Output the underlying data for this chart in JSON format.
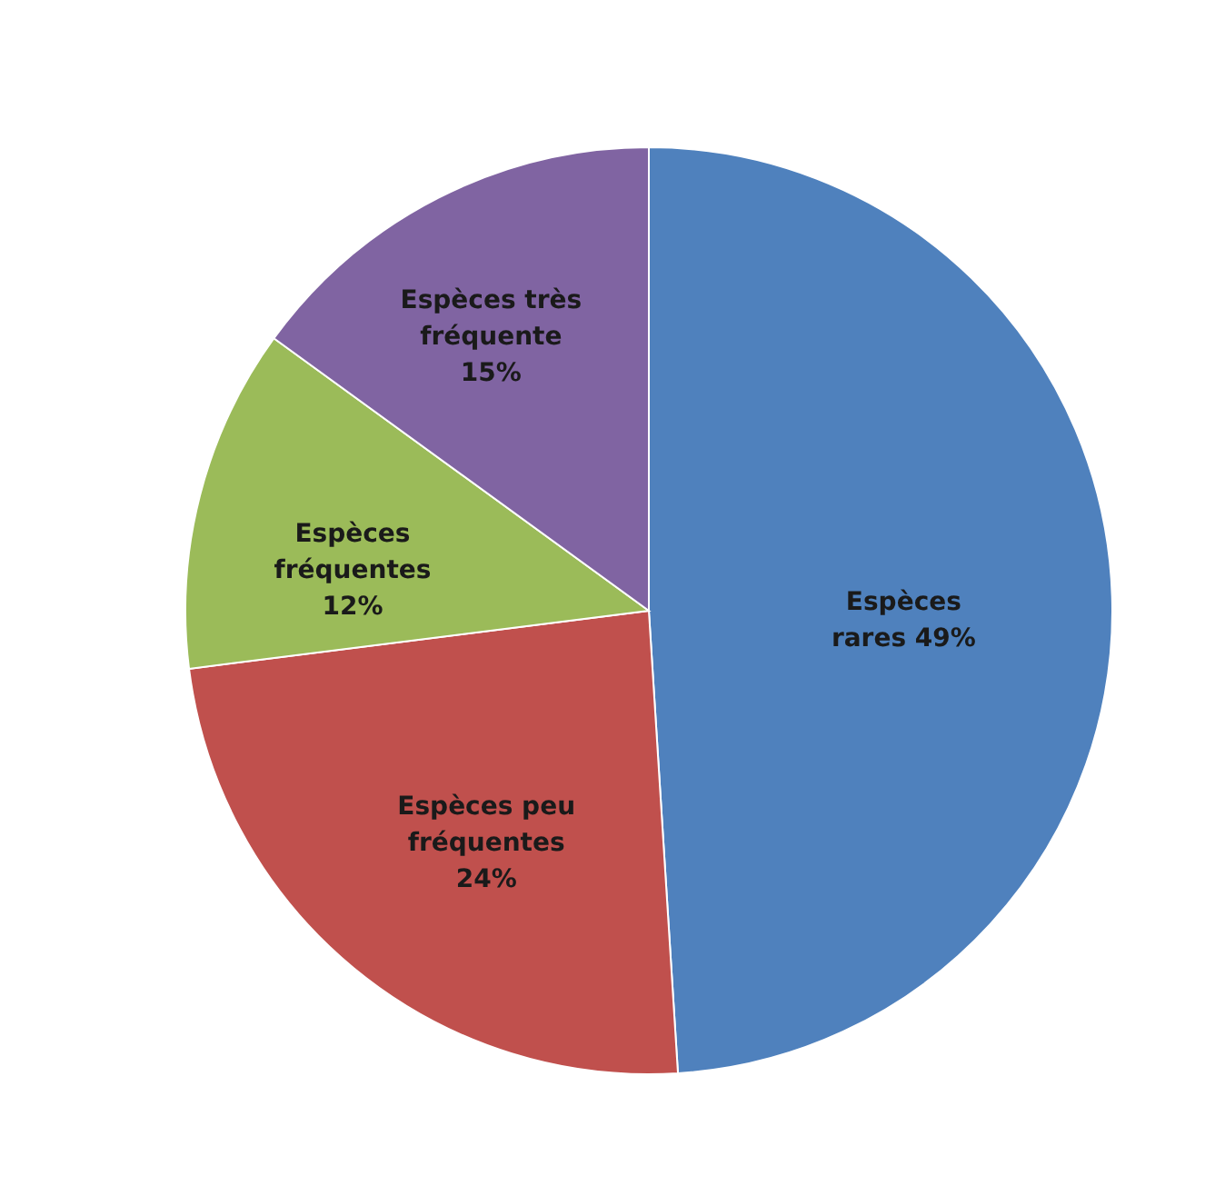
{
  "chart_data": {
    "type": "pie",
    "categories": [
      "Espèces\nrares",
      "Espèces peu\nfréquentes",
      "Espèces\nfréquentes",
      "Espèces très\nfréquente"
    ],
    "values": [
      49,
      24,
      12,
      15
    ],
    "value_labels": [
      "49%",
      "24%",
      "12%",
      "15%"
    ],
    "colors": [
      "#4f81bd",
      "#c0504d",
      "#9bbb59",
      "#8064a2"
    ]
  }
}
